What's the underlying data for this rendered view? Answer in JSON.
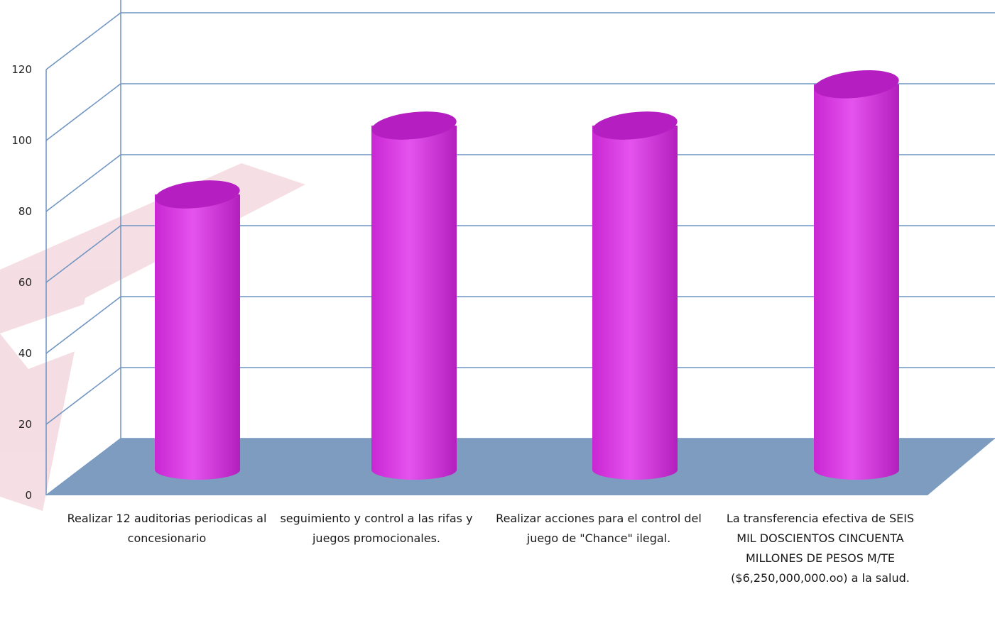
{
  "chart_data": {
    "type": "bar",
    "style": "3d-cylinder",
    "categories": [
      "Realizar 12 auditorias periodicas al concesionario",
      "seguimiento y control a las rifas y juegos promocionales.",
      "Realizar acciones para el control del juego de \"Chance\" ilegal.",
      "La transferencia efectiva de SEIS MIL DOSCIENTOS CINCUENTA MILLONES DE PESOS M/TE ($6,250,000,000.oo) a la salud."
    ],
    "values": [
      80,
      100,
      100,
      112
    ],
    "ylim": [
      0,
      120
    ],
    "yticks": [
      0,
      20,
      40,
      60,
      80,
      100,
      120
    ],
    "grid": true,
    "legend": "none",
    "colors": {
      "bar": "#e040e8",
      "bar_top": "#b51fc2",
      "floor": "#7d9cbf",
      "grid": "#6f94c1"
    }
  }
}
